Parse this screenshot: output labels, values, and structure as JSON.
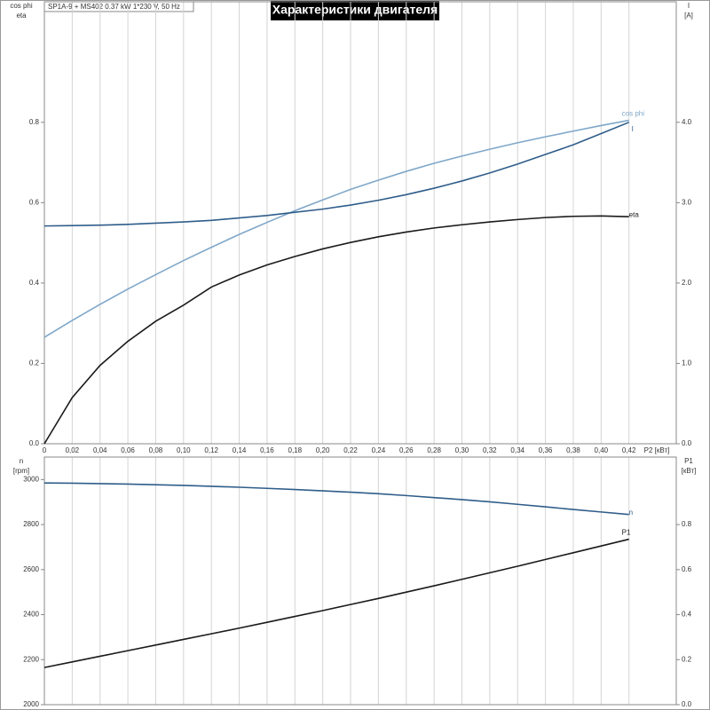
{
  "chart_data": [
    {
      "type": "line",
      "title": "Характеристики двигателя",
      "subtitle": "SP1A-9 + MS402  0.37 kW   1*230 V, 50 Hz",
      "ylabel": [
        "cos phi",
        "eta"
      ],
      "y2label": [
        "I",
        "[A]"
      ],
      "xlabel": "P2 [кВт]",
      "grid": "x",
      "x": [
        0,
        0.02,
        0.04,
        0.06,
        0.08,
        0.1,
        0.12,
        0.14,
        0.16,
        0.18,
        0.2,
        0.22,
        0.24,
        0.26,
        0.28,
        0.3,
        0.32,
        0.34,
        0.36,
        0.38,
        0.4,
        0.42
      ],
      "xlim": [
        0,
        0.454
      ],
      "xticks": [
        {
          "value": 0,
          "label": "0"
        },
        {
          "value": 0.02,
          "label": "0,02"
        },
        {
          "value": 0.04,
          "label": "0,04"
        },
        {
          "value": 0.06,
          "label": "0,06"
        },
        {
          "value": 0.08,
          "label": "0,08"
        },
        {
          "value": 0.1,
          "label": "0,10"
        },
        {
          "value": 0.12,
          "label": "0,12"
        },
        {
          "value": 0.14,
          "label": "0,14"
        },
        {
          "value": 0.16,
          "label": "0,16"
        },
        {
          "value": 0.18,
          "label": "0,18"
        },
        {
          "value": 0.2,
          "label": "0,20"
        },
        {
          "value": 0.22,
          "label": "0,22"
        },
        {
          "value": 0.24,
          "label": "0,24"
        },
        {
          "value": 0.26,
          "label": "0,26"
        },
        {
          "value": 0.28,
          "label": "0,28"
        },
        {
          "value": 0.3,
          "label": "0,30"
        },
        {
          "value": 0.32,
          "label": "0,32"
        },
        {
          "value": 0.34,
          "label": "0,34"
        },
        {
          "value": 0.36,
          "label": "0,36"
        },
        {
          "value": 0.38,
          "label": "0,38"
        },
        {
          "value": 0.4,
          "label": "0,40"
        },
        {
          "value": 0.42,
          "label": "0,42"
        }
      ],
      "show_xtick_labels": true,
      "ylim": [
        0,
        1.1
      ],
      "yticks": [
        {
          "value": 0,
          "label": "0.0"
        },
        {
          "value": 0.2,
          "label": "0.2"
        },
        {
          "value": 0.4,
          "label": "0.4"
        },
        {
          "value": 0.6,
          "label": "0.6"
        },
        {
          "value": 0.8,
          "label": "0.8"
        }
      ],
      "y2lim": [
        0,
        5.5
      ],
      "y2ticks": [
        {
          "value": 0,
          "label": "0.0"
        },
        {
          "value": 1,
          "label": "1.0"
        },
        {
          "value": 2,
          "label": "2.0"
        },
        {
          "value": 3,
          "label": "3.0"
        },
        {
          "value": 4,
          "label": "4.0"
        }
      ],
      "series": [
        {
          "name": "cos phi",
          "color": "#7fa7c9",
          "label_pos": "above",
          "values": [
            0.265,
            0.307,
            0.347,
            0.385,
            0.421,
            0.456,
            0.489,
            0.521,
            0.551,
            0.58,
            0.607,
            0.633,
            0.656,
            0.678,
            0.698,
            0.716,
            0.733,
            0.749,
            0.764,
            0.778,
            0.792,
            0.805
          ]
        },
        {
          "name": "I",
          "color": "#2f5d8a",
          "axis": "y2",
          "label_pos": "below",
          "values": [
            2.71,
            2.715,
            2.72,
            2.73,
            2.745,
            2.76,
            2.78,
            2.81,
            2.84,
            2.88,
            2.92,
            2.97,
            3.03,
            3.1,
            3.18,
            3.27,
            3.37,
            3.48,
            3.6,
            3.72,
            3.86,
            4.0
          ]
        },
        {
          "name": "eta",
          "color": "#1a1a1a",
          "label_pos": "right",
          "values": [
            0,
            0.115,
            0.195,
            0.255,
            0.305,
            0.345,
            0.39,
            0.42,
            0.445,
            0.466,
            0.485,
            0.501,
            0.515,
            0.527,
            0.537,
            0.545,
            0.552,
            0.558,
            0.563,
            0.566,
            0.567,
            0.565
          ]
        }
      ]
    },
    {
      "type": "line",
      "ylabel": [
        "n",
        "[rpm]"
      ],
      "y2label": [
        "P1",
        "[кВт]"
      ],
      "grid": "x",
      "x": [
        0,
        0.02,
        0.04,
        0.06,
        0.08,
        0.1,
        0.12,
        0.14,
        0.16,
        0.18,
        0.2,
        0.22,
        0.24,
        0.26,
        0.28,
        0.3,
        0.32,
        0.34,
        0.36,
        0.38,
        0.4,
        0.42
      ],
      "xlim": [
        0,
        0.454
      ],
      "xticks": [
        0,
        0.02,
        0.04,
        0.06,
        0.08,
        0.1,
        0.12,
        0.14,
        0.16,
        0.18,
        0.2,
        0.22,
        0.24,
        0.26,
        0.28,
        0.3,
        0.32,
        0.34,
        0.36,
        0.38,
        0.4,
        0.42
      ],
      "show_xtick_labels": false,
      "ylim": [
        2000,
        3100
      ],
      "yticks": [
        2000,
        2200,
        2400,
        2600,
        2800,
        3000
      ],
      "y2lim": [
        0,
        1.1
      ],
      "y2ticks": [
        {
          "value": 0,
          "label": "0.0"
        },
        {
          "value": 0.2,
          "label": "0.2"
        },
        {
          "value": 0.4,
          "label": "0.4"
        },
        {
          "value": 0.6,
          "label": "0.6"
        },
        {
          "value": 0.8,
          "label": "0.8"
        }
      ],
      "series": [
        {
          "name": "n",
          "color": "#2f5d8a",
          "label_pos": "right",
          "values": [
            2985,
            2984,
            2982,
            2980,
            2977,
            2974,
            2970,
            2966,
            2961,
            2956,
            2950,
            2944,
            2937,
            2929,
            2920,
            2911,
            2901,
            2890,
            2879,
            2867,
            2856,
            2845
          ]
        },
        {
          "name": "P1",
          "color": "#1a1a1a",
          "axis": "y2",
          "label_pos": "above",
          "values": [
            0.165,
            0.19,
            0.215,
            0.24,
            0.265,
            0.29,
            0.315,
            0.34,
            0.366,
            0.392,
            0.418,
            0.445,
            0.472,
            0.5,
            0.528,
            0.557,
            0.586,
            0.615,
            0.645,
            0.675,
            0.705,
            0.735
          ]
        }
      ]
    }
  ]
}
